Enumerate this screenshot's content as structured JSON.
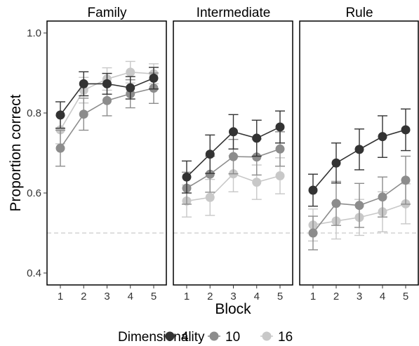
{
  "chart_data": {
    "type": "line",
    "facets": [
      "Family",
      "Intermediate",
      "Rule"
    ],
    "x": [
      1,
      2,
      3,
      4,
      5
    ],
    "xlabel": "Block",
    "ylabel": "Proportion correct",
    "ylim": [
      0.4,
      1.0
    ],
    "yticks": [
      0.4,
      0.6,
      0.8,
      1.0
    ],
    "ytick_labels": [
      "0.4",
      "0.6",
      "0.8",
      "1.0"
    ],
    "xtick_labels": [
      "1",
      "2",
      "3",
      "4",
      "5"
    ],
    "reference_line": 0.5,
    "legend_title": "Dimensionality",
    "legend_position": "bottom",
    "grid": false,
    "series": [
      {
        "name": "4",
        "color": "#333333",
        "values": [
          [
            0.795,
            0.873,
            0.873,
            0.863,
            0.887
          ],
          [
            0.64,
            0.697,
            0.753,
            0.737,
            0.765
          ],
          [
            0.607,
            0.675,
            0.709,
            0.741,
            0.758
          ]
        ],
        "errors": [
          [
            0.033,
            0.03,
            0.026,
            0.028,
            0.027
          ],
          [
            0.04,
            0.048,
            0.043,
            0.045,
            0.04
          ],
          [
            0.04,
            0.05,
            0.051,
            0.052,
            0.052
          ]
        ]
      },
      {
        "name": "10",
        "color": "#8c8c8c",
        "values": [
          [
            0.712,
            0.797,
            0.831,
            0.848,
            0.862
          ],
          [
            0.612,
            0.647,
            0.691,
            0.69,
            0.71
          ],
          [
            0.5,
            0.574,
            0.569,
            0.59,
            0.632
          ]
        ],
        "errors": [
          [
            0.045,
            0.04,
            0.038,
            0.035,
            0.038
          ],
          [
            0.04,
            0.045,
            0.043,
            0.045,
            0.043
          ],
          [
            0.042,
            0.055,
            0.055,
            0.05,
            0.06
          ]
        ]
      },
      {
        "name": "16",
        "color": "#c8c8c8",
        "values": [
          [
            0.758,
            0.857,
            0.885,
            0.902,
            0.898
          ],
          [
            0.58,
            0.589,
            0.648,
            0.627,
            0.643
          ],
          [
            0.52,
            0.53,
            0.539,
            0.553,
            0.573
          ]
        ],
        "errors": [
          [
            0.035,
            0.032,
            0.028,
            0.027,
            0.025
          ],
          [
            0.04,
            0.045,
            0.045,
            0.043,
            0.045
          ],
          [
            0.04,
            0.045,
            0.045,
            0.05,
            0.05
          ]
        ]
      }
    ]
  }
}
